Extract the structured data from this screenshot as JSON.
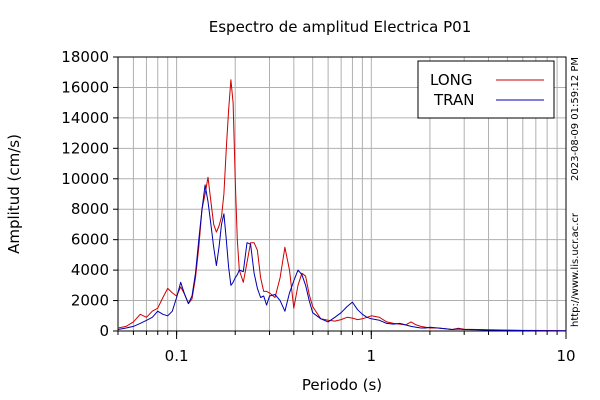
{
  "chart_data": {
    "type": "line",
    "title": "Espectro de amplitud Electrica P01",
    "xlabel": "Periodo (s)",
    "ylabel": "Amplitud (cm/s)",
    "x_scale": "log",
    "xlim": [
      0.05,
      10
    ],
    "ylim": [
      0,
      18000
    ],
    "x_ticks": [
      {
        "value": 0.1,
        "label": "0.1"
      },
      {
        "value": 1,
        "label": "1"
      },
      {
        "value": 10,
        "label": "10"
      }
    ],
    "y_ticks": [
      {
        "value": 0,
        "label": "0"
      },
      {
        "value": 2000,
        "label": "2000"
      },
      {
        "value": 4000,
        "label": "4000"
      },
      {
        "value": 6000,
        "label": "6000"
      },
      {
        "value": 8000,
        "label": "8000"
      },
      {
        "value": 10000,
        "label": "10000"
      },
      {
        "value": 12000,
        "label": "12000"
      },
      {
        "value": 14000,
        "label": "14000"
      },
      {
        "value": 16000,
        "label": "16000"
      },
      {
        "value": 18000,
        "label": "18000"
      }
    ],
    "grid": true,
    "legend_position": "top-right",
    "series": [
      {
        "name": "LONG",
        "color": "#cc0000",
        "x": [
          0.05,
          0.055,
          0.06,
          0.065,
          0.07,
          0.075,
          0.08,
          0.085,
          0.09,
          0.095,
          0.1,
          0.105,
          0.11,
          0.115,
          0.12,
          0.125,
          0.13,
          0.135,
          0.14,
          0.145,
          0.15,
          0.155,
          0.16,
          0.165,
          0.17,
          0.175,
          0.18,
          0.185,
          0.19,
          0.195,
          0.2,
          0.205,
          0.21,
          0.22,
          0.23,
          0.24,
          0.25,
          0.26,
          0.27,
          0.28,
          0.29,
          0.3,
          0.32,
          0.34,
          0.36,
          0.38,
          0.4,
          0.42,
          0.44,
          0.46,
          0.48,
          0.5,
          0.55,
          0.6,
          0.65,
          0.7,
          0.75,
          0.8,
          0.85,
          0.9,
          0.95,
          1.0,
          1.1,
          1.2,
          1.3,
          1.4,
          1.5,
          1.6,
          1.7,
          1.8,
          1.9,
          2.0,
          2.2,
          2.4,
          2.6,
          2.8,
          3.0,
          3.5,
          4.0,
          5.0,
          6.0,
          8.0,
          10.0
        ],
        "y": [
          200,
          300,
          600,
          1100,
          900,
          1300,
          1500,
          2200,
          2800,
          2500,
          2300,
          2900,
          2400,
          1800,
          2100,
          3500,
          5500,
          8000,
          9000,
          10100,
          8500,
          7000,
          6500,
          6900,
          7500,
          9000,
          12000,
          14500,
          16500,
          15000,
          10000,
          6000,
          4000,
          3200,
          4500,
          5800,
          5800,
          5300,
          3500,
          2600,
          2600,
          2500,
          2200,
          3500,
          5500,
          4000,
          1500,
          3000,
          3800,
          3600,
          2400,
          1600,
          800,
          700,
          650,
          750,
          900,
          850,
          750,
          800,
          900,
          1000,
          900,
          600,
          500,
          450,
          400,
          600,
          400,
          300,
          250,
          200,
          200,
          150,
          100,
          180,
          120,
          100,
          80,
          60,
          40,
          30,
          20
        ]
      },
      {
        "name": "TRAN",
        "color": "#0000b0",
        "x": [
          0.05,
          0.055,
          0.06,
          0.065,
          0.07,
          0.075,
          0.08,
          0.085,
          0.09,
          0.095,
          0.1,
          0.105,
          0.11,
          0.115,
          0.12,
          0.125,
          0.13,
          0.135,
          0.14,
          0.145,
          0.15,
          0.155,
          0.16,
          0.165,
          0.17,
          0.175,
          0.18,
          0.185,
          0.19,
          0.195,
          0.2,
          0.205,
          0.21,
          0.22,
          0.23,
          0.24,
          0.25,
          0.26,
          0.27,
          0.28,
          0.29,
          0.3,
          0.32,
          0.34,
          0.36,
          0.38,
          0.4,
          0.42,
          0.44,
          0.46,
          0.48,
          0.5,
          0.55,
          0.6,
          0.65,
          0.7,
          0.75,
          0.8,
          0.85,
          0.9,
          0.95,
          1.0,
          1.1,
          1.2,
          1.3,
          1.4,
          1.5,
          1.6,
          1.7,
          1.8,
          1.9,
          2.0,
          2.2,
          2.4,
          2.6,
          2.8,
          3.0,
          3.5,
          4.0,
          5.0,
          6.0,
          8.0,
          10.0
        ],
        "y": [
          100,
          200,
          300,
          500,
          700,
          900,
          1300,
          1100,
          1000,
          1300,
          2200,
          3200,
          2400,
          1800,
          2300,
          3800,
          6000,
          8000,
          9600,
          8500,
          7000,
          5500,
          4300,
          5500,
          7000,
          7700,
          6000,
          4200,
          3000,
          3200,
          3500,
          3700,
          4000,
          3900,
          5800,
          5700,
          3800,
          2800,
          2200,
          2300,
          1700,
          2300,
          2400,
          2000,
          1300,
          2500,
          3300,
          4000,
          3700,
          3000,
          2000,
          1200,
          800,
          600,
          900,
          1200,
          1600,
          1900,
          1400,
          1100,
          900,
          800,
          700,
          500,
          450,
          500,
          400,
          300,
          250,
          200,
          200,
          250,
          200,
          150,
          100,
          130,
          100,
          80,
          60,
          40,
          30,
          20,
          10
        ]
      }
    ],
    "side_annotations": [
      "2023-08-09 01:59:12 PM",
      "http://www.lis.ucr.ac.cr"
    ]
  }
}
